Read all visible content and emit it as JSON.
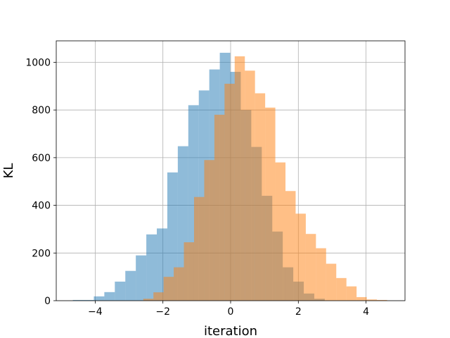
{
  "chart_data": {
    "type": "histogram",
    "title": "",
    "xlabel": "iteration",
    "ylabel": "KL",
    "xlim": [
      -5.15,
      5.15
    ],
    "ylim": [
      0,
      1090
    ],
    "xticks": [
      -4,
      -2,
      0,
      2,
      4
    ],
    "xtick_labels": [
      "−4",
      "−2",
      "0",
      "2",
      "4"
    ],
    "yticks": [
      0,
      200,
      400,
      600,
      800,
      1000
    ],
    "ytick_labels": [
      "0",
      "200",
      "400",
      "600",
      "800",
      "1000"
    ],
    "grid": true,
    "legend": false,
    "series": [
      {
        "color": "#1f77b4",
        "opacity": 0.5,
        "bin_edges": [
          -4.66,
          -4.35,
          -4.04,
          -3.73,
          -3.42,
          -3.11,
          -2.8,
          -2.49,
          -2.18,
          -1.87,
          -1.56,
          -1.25,
          -0.94,
          -0.63,
          -0.32,
          -0.01,
          0.3,
          0.61,
          0.92,
          1.23,
          1.54,
          1.85,
          2.16,
          2.47,
          2.78
        ],
        "counts": [
          3,
          3,
          18,
          36,
          80,
          125,
          190,
          278,
          303,
          538,
          648,
          820,
          882,
          970,
          1040,
          960,
          800,
          645,
          440,
          290,
          140,
          80,
          30,
          8
        ]
      },
      {
        "color": "#ff7f0e",
        "opacity": 0.5,
        "bin_edges": [
          -2.58,
          -2.28,
          -1.98,
          -1.68,
          -1.38,
          -1.08,
          -0.78,
          -0.48,
          -0.18,
          0.12,
          0.42,
          0.72,
          1.02,
          1.32,
          1.62,
          1.92,
          2.22,
          2.52,
          2.82,
          3.12,
          3.42,
          3.72,
          4.02,
          4.32,
          4.62
        ],
        "counts": [
          8,
          35,
          100,
          140,
          245,
          435,
          590,
          780,
          910,
          1025,
          965,
          870,
          810,
          580,
          460,
          365,
          280,
          220,
          155,
          95,
          60,
          15,
          5,
          3
        ]
      }
    ]
  }
}
